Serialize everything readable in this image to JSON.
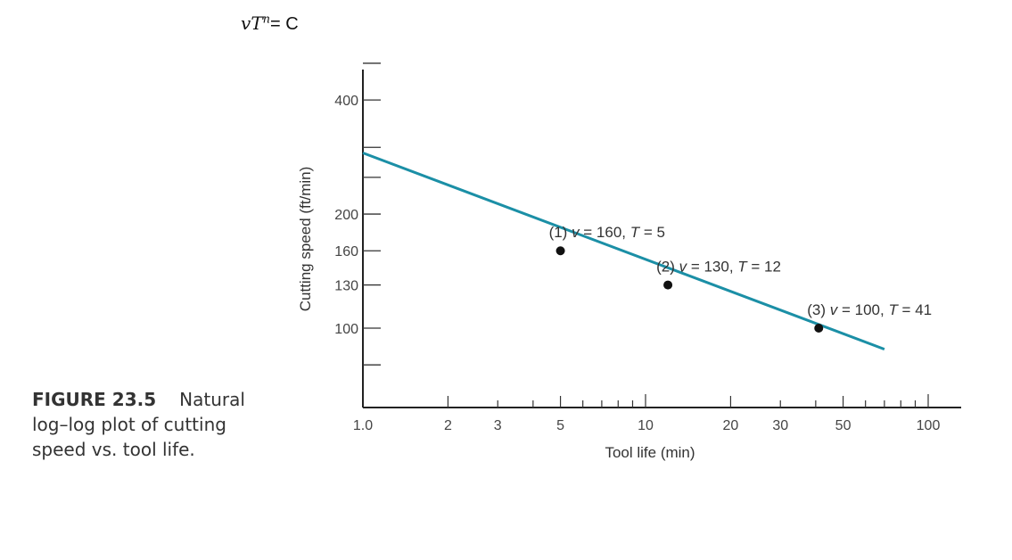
{
  "formula": {
    "v": "v",
    "T": "T",
    "n": "n",
    "rhs": "= C"
  },
  "caption": {
    "label": "FIGURE 23.5",
    "text": "Natural log–log plot of cutting speed vs. tool life."
  },
  "chart_data": {
    "type": "line",
    "xscale": "log",
    "yscale": "log",
    "xlabel": "Tool life (min)",
    "ylabel": "Cutting speed (ft/min)",
    "xlim": [
      1,
      130
    ],
    "ylim": [
      60,
      560
    ],
    "grid": false,
    "x_major_ticks": [
      1,
      10,
      100
    ],
    "x_tick_labels": [
      "1.0",
      "2",
      "3",
      "5",
      "10",
      "20",
      "30",
      "50",
      "100"
    ],
    "x_tick_values": [
      1,
      2,
      3,
      5,
      10,
      20,
      30,
      50,
      100
    ],
    "y_tick_labels": [
      "400",
      "200",
      "160",
      "130",
      "100"
    ],
    "y_tick_values": [
      400,
      200,
      160,
      130,
      100
    ],
    "y_minor_ticks": [
      80,
      250,
      300,
      500
    ],
    "line_color": "#1b8fa6",
    "series": [
      {
        "x": [
          1,
          70
        ],
        "y": [
          290,
          88
        ]
      }
    ],
    "points": [
      {
        "label": "(1) ",
        "v_part": "v",
        "v_value": " = 160, ",
        "t_part": "T",
        "t_value": " = 5",
        "x": 5,
        "y": 160
      },
      {
        "label": "(2) ",
        "v_part": "v",
        "v_value": " = 130, ",
        "t_part": "T",
        "t_value": " = 12",
        "x": 12,
        "y": 130
      },
      {
        "label": "(3) ",
        "v_part": "v",
        "v_value": " = 100, ",
        "t_part": "T",
        "t_value": " = 41",
        "x": 41,
        "y": 100
      }
    ]
  }
}
